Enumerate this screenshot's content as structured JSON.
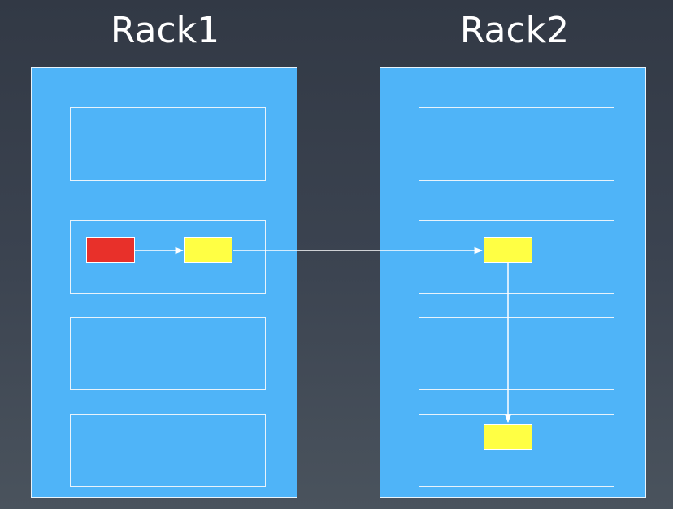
{
  "racks": [
    {
      "title": "Rack1"
    },
    {
      "title": "Rack2"
    }
  ],
  "colors": {
    "background": "#3b4350",
    "rack_fill": "#4fb4f8",
    "outline": "#e8f3fb",
    "source_block": "#e8302a",
    "replica_block": "#ffff44",
    "arrow": "#ffffff"
  }
}
